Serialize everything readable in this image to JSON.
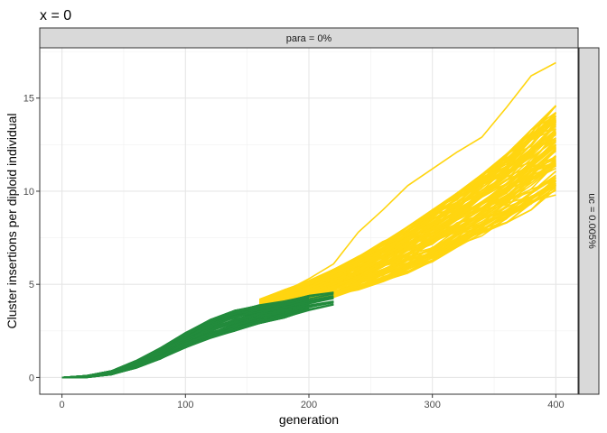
{
  "chart_data": {
    "type": "line",
    "title": "x = 0",
    "xlabel": "generation",
    "ylabel": "Cluster insertions per diploid individual",
    "facet_top": "para = 0%",
    "facet_right": "uc = 0.005%",
    "xlim": [
      -18,
      418
    ],
    "ylim": [
      -0.9,
      17.7
    ],
    "x_ticks": [
      0,
      100,
      200,
      300,
      400
    ],
    "y_ticks": [
      0,
      5,
      10,
      15
    ],
    "grid": true,
    "legend": "none",
    "colors": {
      "phase1": "#228B3C",
      "phase2": "#FFD510"
    },
    "phase1_x": [
      0,
      20,
      40,
      60,
      80,
      100,
      120,
      140,
      160,
      180,
      200,
      220
    ],
    "phase1_bands": {
      "low": [
        0,
        0.0,
        0.15,
        0.5,
        1.0,
        1.6,
        2.1,
        2.5,
        2.9,
        3.2,
        3.6,
        3.9
      ],
      "high": [
        0,
        0.1,
        0.35,
        0.9,
        1.6,
        2.4,
        3.1,
        3.6,
        3.9,
        4.1,
        4.4,
        4.6
      ]
    },
    "phase2_x": [
      160,
      180,
      200,
      220,
      240,
      260,
      280,
      300,
      320,
      340,
      360,
      380,
      400
    ],
    "phase2_bands": {
      "low": [
        3.4,
        3.8,
        4.0,
        4.3,
        4.7,
        5.1,
        5.6,
        6.2,
        6.9,
        7.6,
        8.3,
        9.0,
        9.8
      ],
      "high": [
        4.2,
        4.7,
        5.2,
        5.8,
        6.5,
        7.3,
        8.1,
        9.0,
        9.9,
        10.9,
        12.0,
        13.3,
        14.6
      ]
    },
    "phase2_outlier": {
      "x": [
        180,
        200,
        220,
        240,
        260,
        280,
        300,
        320,
        340,
        360,
        380,
        400
      ],
      "y": [
        4.6,
        5.3,
        6.1,
        7.8,
        9.0,
        10.3,
        11.2,
        12.1,
        12.9,
        14.5,
        16.2,
        16.9
      ]
    },
    "n_runs": 100
  }
}
